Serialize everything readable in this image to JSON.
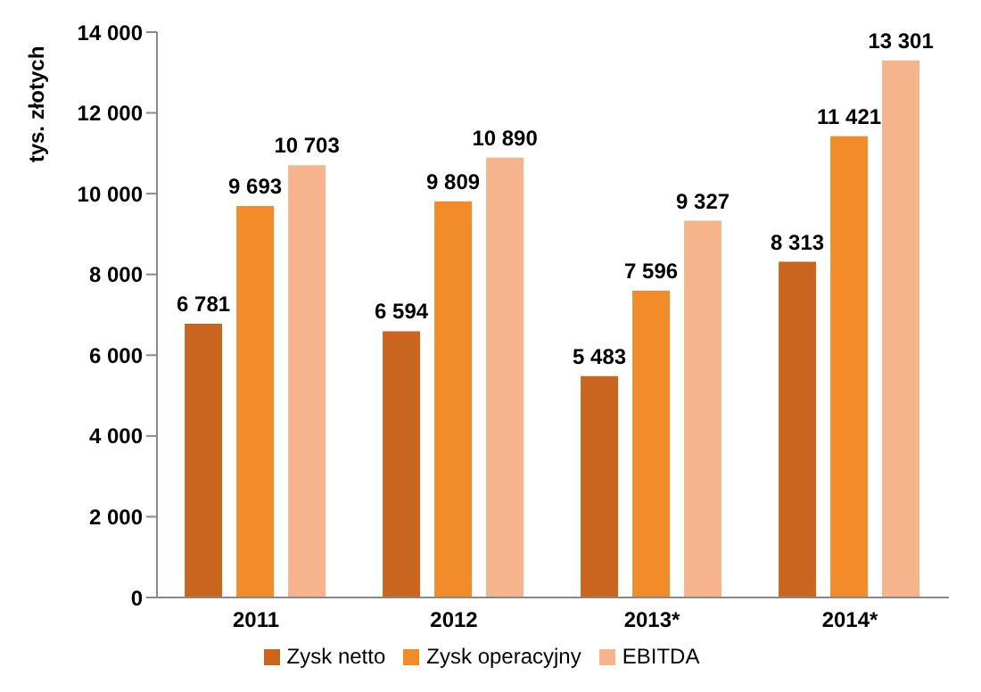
{
  "chart_data": {
    "type": "bar",
    "ylabel": "tys. złotych",
    "categories": [
      "2011",
      "2012",
      "2013*",
      "2014*"
    ],
    "series": [
      {
        "name": "Zysk netto",
        "color": "#c9651f",
        "values": [
          6781,
          6594,
          5483,
          8313
        ],
        "value_labels": [
          "6 781",
          "6 594",
          "5 483",
          "8 313"
        ]
      },
      {
        "name": "Zysk operacyjny",
        "color": "#f28b2a",
        "values": [
          9693,
          9809,
          7596,
          11421
        ],
        "value_labels": [
          "9 693",
          "9 809",
          "7 596",
          "11 421"
        ]
      },
      {
        "name": "EBITDA",
        "color": "#f5b48c",
        "values": [
          10703,
          10890,
          9327,
          13301
        ],
        "value_labels": [
          "10 703",
          "10 890",
          "9 327",
          "13 301"
        ]
      }
    ],
    "ylim": [
      0,
      14000
    ],
    "yticks": [
      {
        "value": 0,
        "label": "0"
      },
      {
        "value": 2000,
        "label": "2 000"
      },
      {
        "value": 4000,
        "label": "4 000"
      },
      {
        "value": 6000,
        "label": "6 000"
      },
      {
        "value": 8000,
        "label": "8 000"
      },
      {
        "value": 10000,
        "label": "10 000"
      },
      {
        "value": 12000,
        "label": "12 000"
      },
      {
        "value": 14000,
        "label": "14 000"
      }
    ],
    "grid": false,
    "legend": "bottom"
  }
}
